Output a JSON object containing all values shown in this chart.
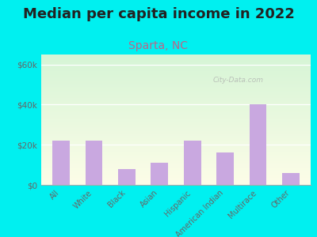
{
  "title": "Median per capita income in 2022",
  "subtitle": "Sparta, NC",
  "categories": [
    "All",
    "White",
    "Black",
    "Asian",
    "Hispanic",
    "American Indian",
    "Multirace",
    "Other"
  ],
  "values": [
    22000,
    22000,
    8000,
    11000,
    22000,
    16000,
    40000,
    6000
  ],
  "bar_color": "#c9a8e0",
  "ylim": [
    0,
    65000
  ],
  "yticks": [
    0,
    20000,
    40000,
    60000
  ],
  "ytick_labels": [
    "$0",
    "$20k",
    "$40k",
    "$60k"
  ],
  "background_outer": "#00f0f0",
  "plot_bg_top": "#d6f5d6",
  "plot_bg_bottom": "#fdfde8",
  "title_fontsize": 13,
  "subtitle_fontsize": 10,
  "watermark": "City-Data.com",
  "title_color": "#222222",
  "subtitle_color": "#bb6688",
  "tick_color": "#666666"
}
